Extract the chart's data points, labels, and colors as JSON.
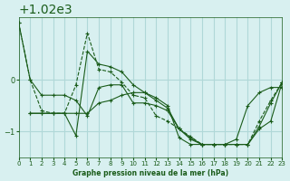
{
  "title": "Graphe pression niveau de la mer (hPa)",
  "bg_color": "#d8f0f0",
  "grid_color": "#b0d8d8",
  "line_color": "#1a5c1a",
  "marker_color": "#1a5c1a",
  "xlim": [
    0,
    23
  ],
  "ylim": [
    1018.5,
    1021.2
  ],
  "yticks": [
    1019,
    1020
  ],
  "xticks": [
    0,
    1,
    2,
    3,
    4,
    5,
    6,
    7,
    8,
    9,
    10,
    11,
    12,
    13,
    14,
    15,
    16,
    17,
    18,
    19,
    20,
    21,
    22,
    23
  ],
  "series": [
    {
      "x": [
        0,
        1,
        2,
        3,
        4,
        5,
        6,
        7,
        8,
        9,
        10,
        11,
        12,
        13,
        14,
        15,
        16,
        17,
        18,
        19,
        20,
        21,
        22,
        23
      ],
      "y": [
        1021.1,
        1020.0,
        1019.7,
        1019.7,
        1019.7,
        1019.6,
        1019.3,
        1019.85,
        1019.9,
        1019.9,
        1019.55,
        1019.55,
        1019.5,
        1019.4,
        1019.05,
        1018.85,
        1018.75,
        1018.75,
        1018.75,
        1018.85,
        1019.5,
        1019.75,
        1019.85,
        1019.85
      ],
      "style": "-",
      "marker": "+"
    },
    {
      "x": [
        0,
        1,
        2,
        3,
        4,
        5,
        6,
        7,
        8,
        9,
        10,
        11,
        12,
        13,
        14,
        15,
        16,
        17,
        18,
        19,
        20,
        21,
        22,
        23
      ],
      "y": [
        1021.1,
        1020.0,
        1019.4,
        1019.35,
        1019.35,
        1019.9,
        1020.9,
        1020.2,
        1020.15,
        1019.95,
        1019.7,
        1019.65,
        1019.3,
        1019.2,
        1019.05,
        1018.9,
        1018.75,
        1018.75,
        1018.75,
        1018.75,
        1018.75,
        1019.2,
        1019.6,
        1019.95
      ],
      "style": "--",
      "marker": "+"
    },
    {
      "x": [
        1,
        2,
        3,
        4,
        5,
        6,
        7,
        8,
        9,
        10,
        11,
        12,
        13,
        14,
        15,
        16,
        17,
        18,
        19,
        20,
        21,
        22,
        23
      ],
      "y": [
        1019.35,
        1019.35,
        1019.35,
        1019.35,
        1018.92,
        1020.55,
        1020.3,
        1020.25,
        1020.15,
        1019.9,
        1019.75,
        1019.6,
        1019.45,
        1019.05,
        1018.88,
        1018.75,
        1018.75,
        1018.75,
        1018.75,
        1018.75,
        1019.1,
        1019.55,
        1019.95
      ],
      "style": "-",
      "marker": "+"
    },
    {
      "x": [
        1,
        2,
        3,
        4,
        5,
        6,
        7,
        8,
        9,
        10,
        11,
        12,
        13,
        14,
        15,
        16,
        17,
        18,
        19,
        20,
        21,
        22,
        23
      ],
      "y": [
        1019.35,
        1019.35,
        1019.35,
        1019.35,
        1019.35,
        1019.35,
        1019.55,
        1019.6,
        1019.7,
        1019.75,
        1019.75,
        1019.65,
        1019.5,
        1018.88,
        1018.75,
        1018.75,
        1018.75,
        1018.75,
        1018.75,
        1018.75,
        1019.05,
        1019.2,
        1019.95
      ],
      "style": "-",
      "marker": "+"
    }
  ]
}
